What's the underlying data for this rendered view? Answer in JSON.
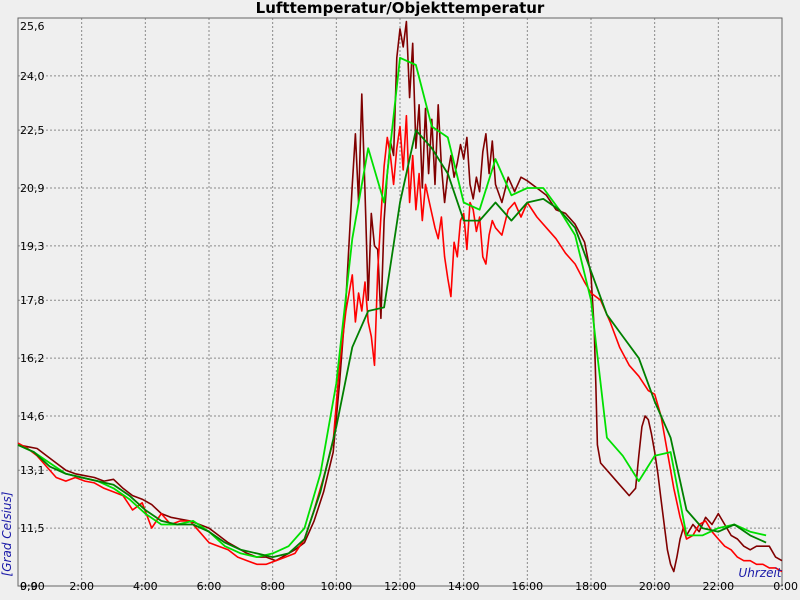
{
  "chart_data": {
    "type": "line",
    "title": "Lufttemperatur/Objekttemperatur",
    "xlabel": "Uhrzeit",
    "ylabel": "[Grad Celsius]",
    "xlim": [
      0,
      24
    ],
    "ylim": [
      9.9,
      25.6
    ],
    "x_ticks": [
      0,
      2,
      4,
      6,
      8,
      10,
      12,
      14,
      16,
      18,
      20,
      22,
      24
    ],
    "x_tick_labels": [
      "0:00",
      "2:00",
      "4:00",
      "6:00",
      "8:00",
      "10:00",
      "12:00",
      "14:00",
      "16:00",
      "18:00",
      "20:00",
      "22:00",
      "0:00"
    ],
    "y_ticks": [
      9.9,
      11.5,
      13.1,
      14.6,
      16.2,
      17.8,
      19.3,
      20.9,
      22.5,
      24.0,
      25.6
    ],
    "y_tick_labels": [
      "9,9",
      "11,5",
      "13,1",
      "14,6",
      "16,2",
      "17,8",
      "19,3",
      "20,9",
      "22,5",
      "24,0",
      "25,6"
    ],
    "grid": true,
    "series": [
      {
        "color": "#800000",
        "x": [
          0,
          0.3,
          0.6,
          0.9,
          1.2,
          1.5,
          1.8,
          2.1,
          2.4,
          2.7,
          3.0,
          3.3,
          3.6,
          3.9,
          4.2,
          4.5,
          4.8,
          5.1,
          5.4,
          5.7,
          6.0,
          6.3,
          6.6,
          6.9,
          7.2,
          7.5,
          7.8,
          8.1,
          8.4,
          8.7,
          9.0,
          9.3,
          9.6,
          9.9,
          10.1,
          10.3,
          10.5,
          10.6,
          10.7,
          10.8,
          10.9,
          11.0,
          11.1,
          11.2,
          11.3,
          11.4,
          11.5,
          11.6,
          11.7,
          11.8,
          11.9,
          12.0,
          12.1,
          12.2,
          12.3,
          12.4,
          12.5,
          12.6,
          12.7,
          12.8,
          12.9,
          13.0,
          13.1,
          13.2,
          13.3,
          13.4,
          13.5,
          13.6,
          13.7,
          13.8,
          13.9,
          14.0,
          14.1,
          14.2,
          14.3,
          14.4,
          14.5,
          14.6,
          14.7,
          14.8,
          14.9,
          15.0,
          15.2,
          15.4,
          15.6,
          15.8,
          16.0,
          16.3,
          16.6,
          16.9,
          17.2,
          17.5,
          17.8,
          18.0,
          18.1,
          18.15,
          18.2,
          18.3,
          18.6,
          18.9,
          19.2,
          19.4,
          19.5,
          19.6,
          19.7,
          19.8,
          19.9,
          20.0,
          20.1,
          20.2,
          20.3,
          20.4,
          20.5,
          20.6,
          20.7,
          20.8,
          20.9,
          21.0,
          21.2,
          21.4,
          21.6,
          21.8,
          22.0,
          22.2,
          22.4,
          22.6,
          22.8,
          23.0,
          23.2,
          23.4,
          23.6,
          23.8,
          24.0
        ],
        "values": [
          13.8,
          13.75,
          13.7,
          13.5,
          13.3,
          13.1,
          13.0,
          12.95,
          12.9,
          12.8,
          12.85,
          12.6,
          12.4,
          12.3,
          12.15,
          11.9,
          11.8,
          11.75,
          11.7,
          11.6,
          11.5,
          11.3,
          11.1,
          10.95,
          10.8,
          10.7,
          10.7,
          10.6,
          10.75,
          10.9,
          11.1,
          11.7,
          12.5,
          13.6,
          15.5,
          17.8,
          21.0,
          22.4,
          20.5,
          23.5,
          20.8,
          17.8,
          20.2,
          19.3,
          19.2,
          17.3,
          20.0,
          21.3,
          22.2,
          21.8,
          24.5,
          25.3,
          24.8,
          25.5,
          23.4,
          24.9,
          22.0,
          23.2,
          20.9,
          23.1,
          21.3,
          22.8,
          21.0,
          23.2,
          21.5,
          20.5,
          21.3,
          21.8,
          21.2,
          21.6,
          22.1,
          21.7,
          22.3,
          21.0,
          20.6,
          21.2,
          20.8,
          21.9,
          22.4,
          21.3,
          22.2,
          21.0,
          20.5,
          21.2,
          20.8,
          21.2,
          21.1,
          20.9,
          20.7,
          20.3,
          20.2,
          19.9,
          19.4,
          18.5,
          17.0,
          15.5,
          13.8,
          13.3,
          13.0,
          12.7,
          12.4,
          12.6,
          13.5,
          14.3,
          14.6,
          14.5,
          14.1,
          13.6,
          13.0,
          12.3,
          11.6,
          10.9,
          10.5,
          10.3,
          10.7,
          11.2,
          11.5,
          11.3,
          11.6,
          11.4,
          11.8,
          11.6,
          11.9,
          11.6,
          11.3,
          11.2,
          11.0,
          10.9,
          11.0,
          11.0,
          11.0,
          10.7,
          10.6
        ]
      },
      {
        "color": "#ff0000",
        "x": [
          0,
          0.3,
          0.6,
          0.9,
          1.2,
          1.5,
          1.8,
          2.1,
          2.4,
          2.7,
          3.0,
          3.3,
          3.6,
          3.9,
          4.2,
          4.5,
          4.8,
          5.1,
          5.4,
          5.7,
          6.0,
          6.3,
          6.6,
          6.9,
          7.2,
          7.5,
          7.8,
          8.1,
          8.4,
          8.7,
          9.0,
          9.3,
          9.6,
          9.9,
          10.1,
          10.3,
          10.5,
          10.6,
          10.7,
          10.8,
          10.9,
          11.0,
          11.1,
          11.2,
          11.3,
          11.4,
          11.5,
          11.6,
          11.7,
          11.8,
          11.9,
          12.0,
          12.1,
          12.2,
          12.3,
          12.4,
          12.5,
          12.6,
          12.7,
          12.8,
          12.9,
          13.0,
          13.1,
          13.2,
          13.3,
          13.4,
          13.5,
          13.6,
          13.7,
          13.8,
          13.9,
          14.0,
          14.1,
          14.2,
          14.3,
          14.4,
          14.5,
          14.6,
          14.7,
          14.8,
          14.9,
          15.0,
          15.2,
          15.4,
          15.6,
          15.8,
          16.0,
          16.3,
          16.6,
          16.9,
          17.2,
          17.5,
          17.8,
          18.0,
          18.3,
          18.6,
          18.9,
          19.2,
          19.5,
          19.8,
          20.0,
          20.2,
          20.4,
          20.6,
          20.8,
          21.0,
          21.2,
          21.4,
          21.6,
          21.8,
          22.0,
          22.2,
          22.4,
          22.6,
          22.8,
          23.0,
          23.2,
          23.4,
          23.6,
          23.8,
          24.0
        ],
        "values": [
          13.85,
          13.7,
          13.5,
          13.2,
          12.9,
          12.8,
          12.9,
          12.8,
          12.75,
          12.6,
          12.5,
          12.4,
          12.0,
          12.2,
          11.5,
          11.9,
          11.6,
          11.7,
          11.7,
          11.4,
          11.1,
          11.0,
          10.9,
          10.7,
          10.6,
          10.5,
          10.5,
          10.6,
          10.7,
          10.8,
          11.2,
          12.0,
          12.9,
          13.9,
          16.0,
          17.5,
          18.5,
          17.2,
          18.0,
          17.5,
          18.3,
          17.2,
          16.8,
          16.0,
          18.6,
          20.1,
          21.5,
          22.3,
          21.8,
          21.0,
          22.0,
          22.6,
          21.4,
          22.9,
          20.5,
          21.8,
          20.3,
          21.3,
          20.0,
          21.0,
          20.6,
          20.2,
          19.8,
          19.5,
          20.1,
          19.0,
          18.4,
          17.9,
          19.4,
          19.0,
          20.0,
          20.2,
          19.2,
          20.5,
          20.3,
          19.7,
          20.1,
          19.0,
          18.8,
          19.6,
          20.0,
          19.8,
          19.6,
          20.3,
          20.5,
          20.1,
          20.5,
          20.1,
          19.8,
          19.5,
          19.1,
          18.8,
          18.3,
          18.0,
          17.8,
          17.2,
          16.5,
          16.0,
          15.7,
          15.3,
          15.2,
          14.6,
          13.6,
          12.6,
          11.8,
          11.2,
          11.3,
          11.6,
          11.7,
          11.4,
          11.2,
          11.0,
          10.9,
          10.7,
          10.6,
          10.6,
          10.5,
          10.5,
          10.4,
          10.4,
          10.3
        ]
      },
      {
        "color": "#00e000",
        "x": [
          0,
          0.5,
          1.0,
          1.5,
          2.0,
          2.5,
          3.0,
          3.5,
          4.0,
          4.5,
          5.0,
          5.5,
          6.0,
          6.5,
          7.0,
          7.5,
          8.0,
          8.5,
          9.0,
          9.5,
          10.0,
          10.5,
          11.0,
          11.5,
          12.0,
          12.5,
          13.0,
          13.5,
          14.0,
          14.5,
          15.0,
          15.5,
          16.0,
          16.5,
          17.0,
          17.5,
          18.0,
          18.5,
          19.0,
          19.5,
          20.0,
          20.5,
          21.0,
          21.5,
          22.0,
          22.5,
          23.0,
          23.5
        ],
        "values": [
          13.8,
          13.6,
          13.3,
          13.0,
          12.9,
          12.8,
          12.6,
          12.3,
          11.9,
          11.6,
          11.6,
          11.7,
          11.4,
          11.0,
          10.8,
          10.7,
          10.8,
          11.0,
          11.5,
          13.0,
          15.5,
          19.5,
          22.0,
          20.5,
          24.5,
          24.3,
          22.6,
          22.3,
          20.5,
          20.3,
          21.7,
          20.7,
          20.9,
          20.9,
          20.3,
          19.6,
          17.8,
          14.0,
          13.5,
          12.8,
          13.5,
          13.6,
          11.3,
          11.3,
          11.5,
          11.6,
          11.4,
          11.3
        ]
      },
      {
        "color": "#008000",
        "x": [
          0,
          0.5,
          1.0,
          1.5,
          2.0,
          2.5,
          3.0,
          3.5,
          4.0,
          4.5,
          5.0,
          5.5,
          6.0,
          6.5,
          7.0,
          7.5,
          8.0,
          8.5,
          9.0,
          9.5,
          10.0,
          10.5,
          11.0,
          11.5,
          12.0,
          12.5,
          13.0,
          13.5,
          14.0,
          14.5,
          15.0,
          15.5,
          16.0,
          16.5,
          17.0,
          17.5,
          18.0,
          18.5,
          19.0,
          19.5,
          20.0,
          20.5,
          21.0,
          21.5,
          22.0,
          22.5,
          23.0,
          23.5
        ],
        "values": [
          13.8,
          13.6,
          13.2,
          13.0,
          12.9,
          12.8,
          12.7,
          12.4,
          12.0,
          11.7,
          11.6,
          11.6,
          11.4,
          11.1,
          10.9,
          10.8,
          10.7,
          10.8,
          11.2,
          12.5,
          14.3,
          16.5,
          17.5,
          17.6,
          20.5,
          22.5,
          22.0,
          21.3,
          20.0,
          20.0,
          20.5,
          20.0,
          20.5,
          20.6,
          20.3,
          19.8,
          18.6,
          17.4,
          16.8,
          16.2,
          15.0,
          14.0,
          12.0,
          11.5,
          11.4,
          11.6,
          11.3,
          11.1
        ]
      }
    ]
  }
}
